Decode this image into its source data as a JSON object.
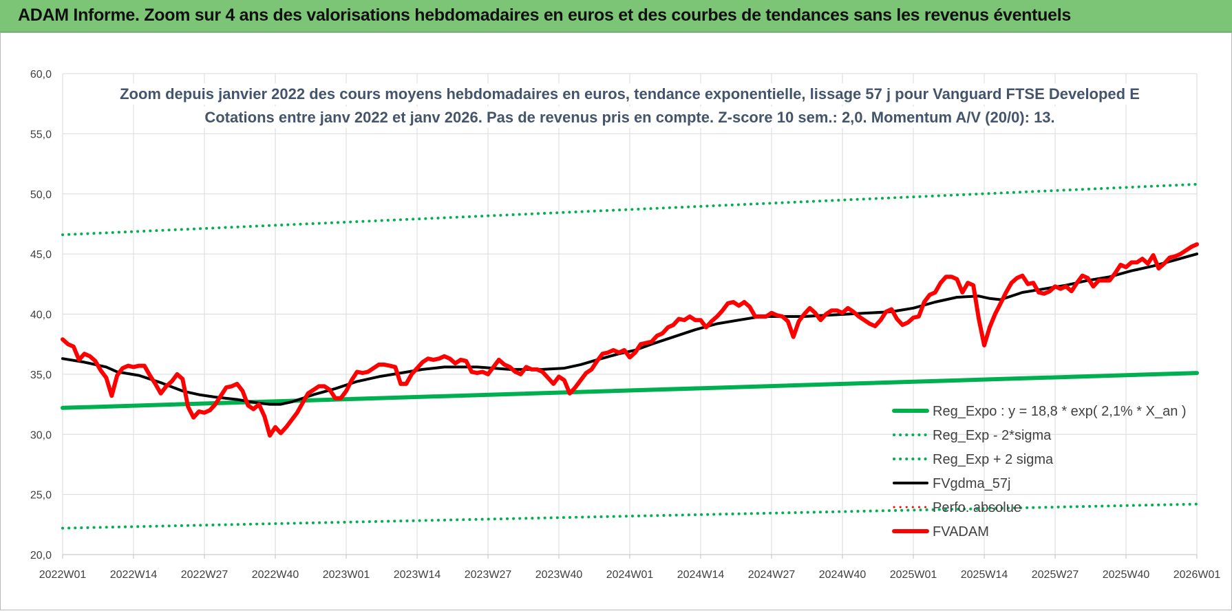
{
  "header": {
    "title": "ADAM Informe. Zoom sur 4 ans des valorisations hebdomadaires en euros et des courbes de tendances sans les revenus éventuels"
  },
  "chart_data": {
    "type": "line",
    "title_lines": [
      "Zoom depuis janvier 2022 des cours moyens hebdomadaires en euros, tendance exponentielle, lissage 57 j pour Vanguard FTSE Developed E",
      "Cotations entre janv 2022 et janv 2026. Pas de revenus pris en compte. Z-score 10 sem.: 2,0. Momentum A/V (20/0): 13."
    ],
    "ylim": [
      20,
      60
    ],
    "y_ticks": [
      "20,0",
      "25,0",
      "30,0",
      "35,0",
      "40,0",
      "45,0",
      "50,0",
      "55,0",
      "60,0"
    ],
    "x_range": [
      0,
      208
    ],
    "x_ticks": [
      {
        "pos": 0,
        "label": "2022W01"
      },
      {
        "pos": 13,
        "label": "2022W14"
      },
      {
        "pos": 26,
        "label": "2022W27"
      },
      {
        "pos": 39,
        "label": "2022W40"
      },
      {
        "pos": 52,
        "label": "2023W01"
      },
      {
        "pos": 65,
        "label": "2023W14"
      },
      {
        "pos": 78,
        "label": "2023W27"
      },
      {
        "pos": 91,
        "label": "2023W40"
      },
      {
        "pos": 104,
        "label": "2024W01"
      },
      {
        "pos": 117,
        "label": "2024W14"
      },
      {
        "pos": 130,
        "label": "2024W27"
      },
      {
        "pos": 143,
        "label": "2024W40"
      },
      {
        "pos": 156,
        "label": "2025W01"
      },
      {
        "pos": 169,
        "label": "2025W14"
      },
      {
        "pos": 182,
        "label": "2025W27"
      },
      {
        "pos": 195,
        "label": "2025W40"
      },
      {
        "pos": 208,
        "label": "2026W01"
      }
    ],
    "grid": true,
    "legend_position": "bottom-right",
    "series": [
      {
        "name": "Reg_Expo : y = 18,8 * exp( 2,1% *  X_an )",
        "color": "#00b050",
        "style": "solid",
        "width": 6,
        "points": [
          [
            0,
            32.2
          ],
          [
            208,
            35.1
          ]
        ]
      },
      {
        "name": "Reg_Exp - 2*sigma",
        "color": "#00b050",
        "style": "dotted",
        "width": 4,
        "points": [
          [
            0,
            22.2
          ],
          [
            208,
            24.2
          ]
        ]
      },
      {
        "name": "Reg_Exp + 2 sigma",
        "color": "#00b050",
        "style": "dotted",
        "width": 4,
        "points": [
          [
            0,
            46.6
          ],
          [
            208,
            50.8
          ]
        ]
      },
      {
        "name": "FVgdma_57j",
        "color": "#000000",
        "style": "solid",
        "width": 4,
        "points": [
          [
            0,
            36.3
          ],
          [
            4,
            36.0
          ],
          [
            8,
            35.6
          ],
          [
            10,
            35.2
          ],
          [
            14,
            34.9
          ],
          [
            18,
            34.3
          ],
          [
            22,
            33.6
          ],
          [
            25,
            33.3
          ],
          [
            28,
            33.1
          ],
          [
            32,
            32.9
          ],
          [
            36,
            32.6
          ],
          [
            38,
            32.5
          ],
          [
            40,
            32.5
          ],
          [
            42,
            32.7
          ],
          [
            46,
            33.3
          ],
          [
            50,
            33.8
          ],
          [
            54,
            34.4
          ],
          [
            58,
            34.8
          ],
          [
            62,
            35.1
          ],
          [
            66,
            35.4
          ],
          [
            70,
            35.6
          ],
          [
            76,
            35.6
          ],
          [
            82,
            35.4
          ],
          [
            88,
            35.4
          ],
          [
            92,
            35.5
          ],
          [
            95,
            35.8
          ],
          [
            98,
            36.2
          ],
          [
            102,
            36.7
          ],
          [
            105,
            37.0
          ],
          [
            108,
            37.5
          ],
          [
            112,
            38.1
          ],
          [
            116,
            38.7
          ],
          [
            120,
            39.2
          ],
          [
            124,
            39.5
          ],
          [
            128,
            39.8
          ],
          [
            132,
            39.8
          ],
          [
            136,
            39.8
          ],
          [
            140,
            39.9
          ],
          [
            144,
            40.0
          ],
          [
            148,
            40.1
          ],
          [
            152,
            40.2
          ],
          [
            156,
            40.5
          ],
          [
            160,
            41.0
          ],
          [
            164,
            41.4
          ],
          [
            168,
            41.5
          ],
          [
            170,
            41.3
          ],
          [
            172,
            41.2
          ],
          [
            176,
            41.8
          ],
          [
            180,
            42.1
          ],
          [
            184,
            42.4
          ],
          [
            188,
            42.8
          ],
          [
            192,
            43.1
          ],
          [
            196,
            43.6
          ],
          [
            200,
            44.0
          ],
          [
            204,
            44.5
          ],
          [
            208,
            45.0
          ]
        ]
      },
      {
        "name": "Perfo. absolue",
        "color": "#ff0000",
        "style": "dotted",
        "width": 3,
        "points": []
      },
      {
        "name": "FVADAM",
        "color": "#ff0000",
        "style": "solid",
        "width": 6,
        "points": [
          [
            0,
            37.9
          ],
          [
            1,
            37.5
          ],
          [
            2,
            37.3
          ],
          [
            3,
            36.2
          ],
          [
            4,
            36.7
          ],
          [
            5,
            36.5
          ],
          [
            6,
            36.1
          ],
          [
            7,
            35.3
          ],
          [
            8,
            34.7
          ],
          [
            9,
            33.2
          ],
          [
            10,
            34.9
          ],
          [
            11,
            35.5
          ],
          [
            12,
            35.7
          ],
          [
            13,
            35.6
          ],
          [
            14,
            35.7
          ],
          [
            15,
            35.7
          ],
          [
            16,
            34.9
          ],
          [
            17,
            34.2
          ],
          [
            18,
            33.4
          ],
          [
            19,
            34.0
          ],
          [
            20,
            34.4
          ],
          [
            21,
            35.0
          ],
          [
            22,
            34.6
          ],
          [
            23,
            32.3
          ],
          [
            24,
            31.4
          ],
          [
            25,
            31.9
          ],
          [
            26,
            31.8
          ],
          [
            27,
            32.0
          ],
          [
            28,
            32.5
          ],
          [
            29,
            33.2
          ],
          [
            30,
            33.9
          ],
          [
            31,
            34.0
          ],
          [
            32,
            34.2
          ],
          [
            33,
            33.6
          ],
          [
            34,
            32.4
          ],
          [
            35,
            32.1
          ],
          [
            36,
            32.5
          ],
          [
            37,
            31.5
          ],
          [
            38,
            29.9
          ],
          [
            39,
            30.6
          ],
          [
            40,
            30.1
          ],
          [
            41,
            30.6
          ],
          [
            42,
            31.2
          ],
          [
            43,
            31.8
          ],
          [
            44,
            32.6
          ],
          [
            45,
            33.4
          ],
          [
            46,
            33.7
          ],
          [
            47,
            34.0
          ],
          [
            48,
            34.0
          ],
          [
            49,
            33.7
          ],
          [
            50,
            33.0
          ],
          [
            51,
            33.0
          ],
          [
            52,
            33.6
          ],
          [
            53,
            34.5
          ],
          [
            54,
            35.2
          ],
          [
            55,
            35.1
          ],
          [
            56,
            35.2
          ],
          [
            57,
            35.5
          ],
          [
            58,
            35.8
          ],
          [
            59,
            35.8
          ],
          [
            60,
            35.7
          ],
          [
            61,
            35.6
          ],
          [
            62,
            34.2
          ],
          [
            63,
            34.2
          ],
          [
            64,
            35.0
          ],
          [
            65,
            35.5
          ],
          [
            66,
            36.0
          ],
          [
            67,
            36.3
          ],
          [
            68,
            36.2
          ],
          [
            69,
            36.3
          ],
          [
            70,
            36.5
          ],
          [
            71,
            36.3
          ],
          [
            72,
            35.9
          ],
          [
            73,
            36.2
          ],
          [
            74,
            36.1
          ],
          [
            75,
            35.2
          ],
          [
            76,
            35.1
          ],
          [
            77,
            35.2
          ],
          [
            78,
            35.0
          ],
          [
            79,
            35.6
          ],
          [
            80,
            36.2
          ],
          [
            81,
            35.8
          ],
          [
            82,
            35.6
          ],
          [
            83,
            35.2
          ],
          [
            84,
            35.0
          ],
          [
            85,
            35.6
          ],
          [
            86,
            35.4
          ],
          [
            87,
            35.4
          ],
          [
            88,
            35.2
          ],
          [
            89,
            34.7
          ],
          [
            90,
            34.2
          ],
          [
            91,
            34.8
          ],
          [
            92,
            34.5
          ],
          [
            93,
            33.4
          ],
          [
            94,
            33.9
          ],
          [
            95,
            34.5
          ],
          [
            96,
            35.1
          ],
          [
            97,
            35.4
          ],
          [
            98,
            36.1
          ],
          [
            99,
            36.7
          ],
          [
            100,
            36.8
          ],
          [
            101,
            37.0
          ],
          [
            102,
            36.8
          ],
          [
            103,
            37.0
          ],
          [
            104,
            36.4
          ],
          [
            105,
            36.8
          ],
          [
            106,
            37.5
          ],
          [
            107,
            37.6
          ],
          [
            108,
            37.7
          ],
          [
            109,
            38.2
          ],
          [
            110,
            38.4
          ],
          [
            111,
            38.9
          ],
          [
            112,
            39.1
          ],
          [
            113,
            39.6
          ],
          [
            114,
            39.5
          ],
          [
            115,
            39.8
          ],
          [
            116,
            39.5
          ],
          [
            117,
            39.5
          ],
          [
            118,
            38.9
          ],
          [
            119,
            39.4
          ],
          [
            120,
            39.8
          ],
          [
            121,
            40.3
          ],
          [
            122,
            40.9
          ],
          [
            123,
            41.0
          ],
          [
            124,
            40.7
          ],
          [
            125,
            41.0
          ],
          [
            126,
            40.6
          ],
          [
            127,
            39.8
          ],
          [
            128,
            39.8
          ],
          [
            129,
            39.8
          ],
          [
            130,
            40.1
          ],
          [
            131,
            39.9
          ],
          [
            132,
            39.8
          ],
          [
            133,
            39.4
          ],
          [
            134,
            38.1
          ],
          [
            135,
            39.4
          ],
          [
            136,
            40.0
          ],
          [
            137,
            40.5
          ],
          [
            138,
            40.1
          ],
          [
            139,
            39.5
          ],
          [
            140,
            40.0
          ],
          [
            141,
            40.3
          ],
          [
            142,
            40.3
          ],
          [
            143,
            40.1
          ],
          [
            144,
            40.5
          ],
          [
            145,
            40.2
          ],
          [
            146,
            39.8
          ],
          [
            147,
            39.5
          ],
          [
            148,
            39.2
          ],
          [
            149,
            39.0
          ],
          [
            150,
            39.5
          ],
          [
            151,
            40.2
          ],
          [
            152,
            40.4
          ],
          [
            153,
            39.6
          ],
          [
            154,
            39.1
          ],
          [
            155,
            39.3
          ],
          [
            156,
            39.7
          ],
          [
            157,
            39.8
          ],
          [
            158,
            41.0
          ],
          [
            159,
            41.6
          ],
          [
            160,
            41.8
          ],
          [
            161,
            42.6
          ],
          [
            162,
            43.1
          ],
          [
            163,
            43.1
          ],
          [
            164,
            42.9
          ],
          [
            165,
            41.8
          ],
          [
            166,
            42.6
          ],
          [
            167,
            42.4
          ],
          [
            168,
            39.6
          ],
          [
            169,
            37.4
          ],
          [
            170,
            38.9
          ],
          [
            171,
            40.0
          ],
          [
            172,
            40.9
          ],
          [
            173,
            41.8
          ],
          [
            174,
            42.6
          ],
          [
            175,
            43.0
          ],
          [
            176,
            43.2
          ],
          [
            177,
            42.5
          ],
          [
            178,
            42.6
          ],
          [
            179,
            41.8
          ],
          [
            180,
            41.7
          ],
          [
            181,
            41.9
          ],
          [
            182,
            42.3
          ],
          [
            183,
            42.1
          ],
          [
            184,
            42.3
          ],
          [
            185,
            41.9
          ],
          [
            186,
            42.6
          ],
          [
            187,
            43.2
          ],
          [
            188,
            43.0
          ],
          [
            189,
            42.3
          ],
          [
            190,
            42.8
          ],
          [
            191,
            42.8
          ],
          [
            192,
            42.8
          ],
          [
            193,
            43.4
          ],
          [
            194,
            44.1
          ],
          [
            195,
            43.9
          ],
          [
            196,
            44.3
          ],
          [
            197,
            44.3
          ],
          [
            198,
            44.6
          ],
          [
            199,
            44.2
          ],
          [
            200,
            44.9
          ],
          [
            201,
            43.8
          ],
          [
            202,
            44.2
          ],
          [
            203,
            44.7
          ],
          [
            204,
            44.8
          ],
          [
            205,
            45.0
          ],
          [
            206,
            45.3
          ],
          [
            207,
            45.6
          ],
          [
            208,
            45.8
          ]
        ]
      }
    ]
  }
}
